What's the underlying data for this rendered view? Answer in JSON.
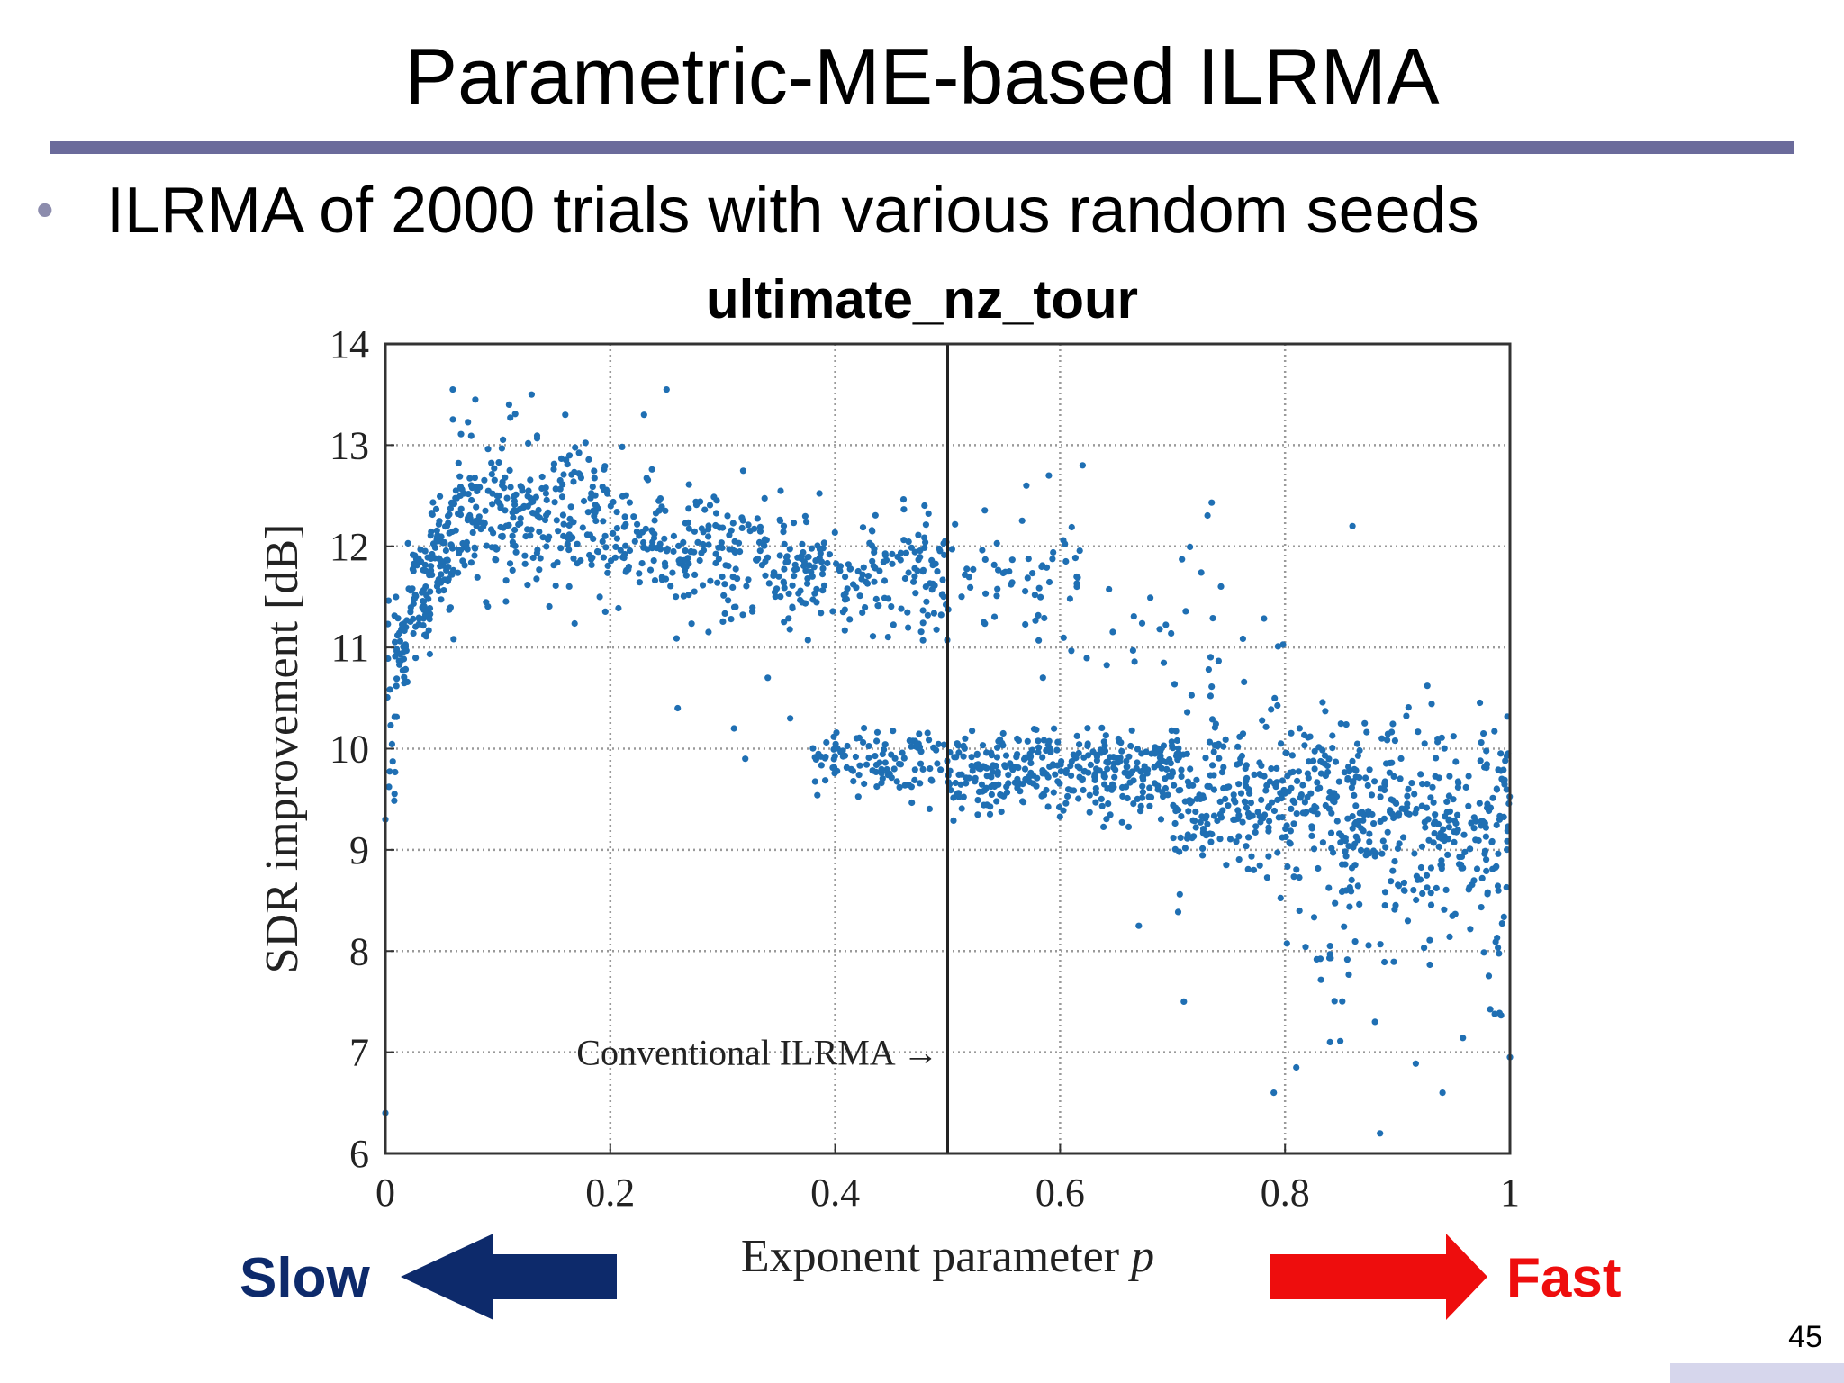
{
  "slide": {
    "title": "Parametric-ME-based ILRMA",
    "bullet": "ILRMA of 2000 trials with various random seeds",
    "page_number": "45",
    "slow_label": "Slow",
    "fast_label": "Fast",
    "colors": {
      "slow": "#0d2a6b",
      "fast": "#ee0d0d",
      "title_rule": "#6b6b9b",
      "points": "#1f6fb3"
    }
  },
  "chart_data": {
    "type": "scatter",
    "title": "ultimate_nz_tour",
    "xlabel": "Exponent parameter p",
    "ylabel": "SDR improvement [dB]",
    "xlim": [
      0,
      1
    ],
    "ylim": [
      6,
      14
    ],
    "xticks": [
      "0",
      "0.2",
      "0.4",
      "0.6",
      "0.8",
      "1"
    ],
    "yticks": [
      "6",
      "7",
      "8",
      "9",
      "10",
      "11",
      "12",
      "13",
      "14"
    ],
    "grid": true,
    "annotation": {
      "text": "Conventional ILRMA →",
      "at_x": 0.5
    },
    "vline_x": 0.5,
    "clusters": [
      {
        "x": [
          0.0,
          0.01
        ],
        "y_mean": 10.6,
        "y_std": 0.7,
        "n": 20
      },
      {
        "x": [
          0.01,
          0.02
        ],
        "y_mean": 11.05,
        "y_std": 0.22,
        "n": 30
      },
      {
        "x": [
          0.02,
          0.04
        ],
        "y_mean": 11.5,
        "y_std": 0.25,
        "n": 60
      },
      {
        "x": [
          0.04,
          0.06
        ],
        "y_mean": 11.95,
        "y_std": 0.25,
        "n": 70
      },
      {
        "x": [
          0.06,
          0.12
        ],
        "y_mean": 12.3,
        "y_std": 0.35,
        "n": 130
      },
      {
        "x": [
          0.12,
          0.2
        ],
        "y_mean": 12.25,
        "y_std": 0.35,
        "n": 140
      },
      {
        "x": [
          0.2,
          0.3
        ],
        "y_mean": 12.0,
        "y_std": 0.32,
        "n": 140
      },
      {
        "x": [
          0.3,
          0.4
        ],
        "y_mean": 11.8,
        "y_std": 0.3,
        "n": 140
      },
      {
        "x": [
          0.4,
          0.5
        ],
        "y_mean": 11.7,
        "y_std": 0.3,
        "n": 120
      },
      {
        "x": [
          0.5,
          0.62
        ],
        "y_mean": 11.7,
        "y_std": 0.35,
        "n": 60
      },
      {
        "x": [
          0.62,
          0.8
        ],
        "y_mean": 11.0,
        "y_std": 0.6,
        "n": 40
      },
      {
        "x": [
          0.38,
          0.5
        ],
        "y_mean": 9.85,
        "y_std": 0.17,
        "n": 110
      },
      {
        "x": [
          0.5,
          0.7
        ],
        "y_mean": 9.75,
        "y_std": 0.2,
        "n": 340
      },
      {
        "x": [
          0.7,
          0.85
        ],
        "y_mean": 9.55,
        "y_std": 0.35,
        "n": 280
      },
      {
        "x": [
          0.85,
          1.0
        ],
        "y_mean": 9.25,
        "y_std": 0.55,
        "n": 300
      },
      {
        "x": [
          0.8,
          1.0
        ],
        "y_mean": 8.0,
        "y_std": 0.6,
        "n": 60
      }
    ],
    "outliers": [
      {
        "x": 0.06,
        "y": 13.55
      },
      {
        "x": 0.08,
        "y": 13.45
      },
      {
        "x": 0.11,
        "y": 13.4
      },
      {
        "x": 0.13,
        "y": 13.5
      },
      {
        "x": 0.16,
        "y": 13.3
      },
      {
        "x": 0.23,
        "y": 13.3
      },
      {
        "x": 0.25,
        "y": 13.55
      },
      {
        "x": 0.0,
        "y": 9.3
      },
      {
        "x": 0.0,
        "y": 6.4
      },
      {
        "x": 0.26,
        "y": 10.4
      },
      {
        "x": 0.31,
        "y": 10.2
      },
      {
        "x": 0.32,
        "y": 9.9
      },
      {
        "x": 0.34,
        "y": 10.7
      },
      {
        "x": 0.36,
        "y": 10.3
      },
      {
        "x": 0.57,
        "y": 12.6
      },
      {
        "x": 0.59,
        "y": 12.7
      },
      {
        "x": 0.62,
        "y": 12.8
      },
      {
        "x": 0.86,
        "y": 12.2
      },
      {
        "x": 0.67,
        "y": 8.25
      },
      {
        "x": 0.71,
        "y": 7.5
      },
      {
        "x": 0.79,
        "y": 6.6
      },
      {
        "x": 0.81,
        "y": 6.85
      },
      {
        "x": 0.94,
        "y": 6.6
      },
      {
        "x": 1.0,
        "y": 6.95
      },
      {
        "x": 0.84,
        "y": 7.1
      },
      {
        "x": 0.88,
        "y": 7.3
      }
    ]
  }
}
